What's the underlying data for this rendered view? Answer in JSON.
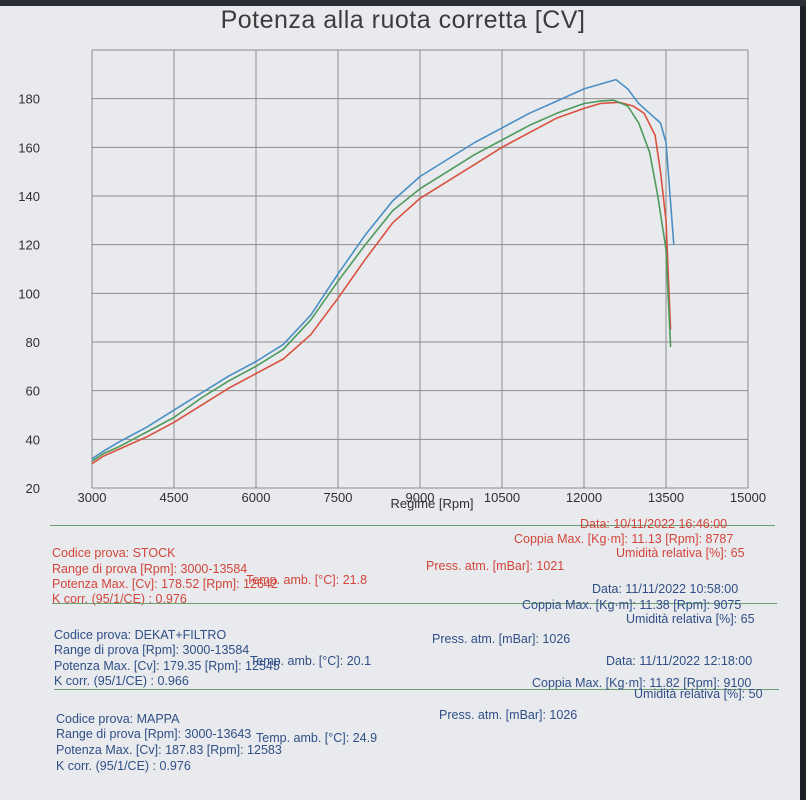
{
  "chart_data": {
    "type": "line",
    "title": "Potenza alla ruota corretta [CV]",
    "xlabel": "Regime [Rpm]",
    "ylabel": "",
    "xlim": [
      3000,
      15000
    ],
    "ylim": [
      20,
      200
    ],
    "xticks": [
      3000,
      4500,
      6000,
      7500,
      9000,
      10500,
      12000,
      13500,
      15000
    ],
    "yticks": [
      20,
      40,
      60,
      80,
      100,
      120,
      140,
      160,
      180
    ],
    "grid": true,
    "series": [
      {
        "name": "STOCK",
        "color": "#d9513f",
        "x": [
          3000,
          3200,
          3500,
          4000,
          4500,
          5000,
          5500,
          6000,
          6500,
          7000,
          7500,
          8000,
          8500,
          9000,
          9500,
          10000,
          10500,
          11000,
          11500,
          12000,
          12300,
          12642,
          12900,
          13100,
          13300,
          13400,
          13500,
          13584
        ],
        "y": [
          30,
          33,
          36,
          41,
          47,
          54,
          61,
          67,
          73,
          83,
          98,
          114,
          129,
          139,
          146,
          153,
          160,
          166,
          172,
          176,
          178,
          178.52,
          177,
          174,
          165,
          150,
          130,
          85
        ]
      },
      {
        "name": "DEKAT+FILTRO",
        "color": "#4d9a5b",
        "x": [
          3000,
          3200,
          3500,
          4000,
          4500,
          5000,
          5500,
          6000,
          6500,
          7000,
          7500,
          8000,
          8500,
          9000,
          9500,
          10000,
          10500,
          11000,
          11500,
          12000,
          12300,
          12545,
          12800,
          13000,
          13200,
          13350,
          13500,
          13584
        ],
        "y": [
          31,
          34,
          37,
          43,
          49,
          57,
          64,
          70,
          77,
          89,
          105,
          120,
          134,
          143,
          150,
          157,
          163,
          169,
          174,
          178,
          179,
          179.35,
          177,
          170,
          158,
          140,
          118,
          78
        ]
      },
      {
        "name": "MAPPA",
        "color": "#4a8fc4",
        "x": [
          3000,
          3200,
          3500,
          4000,
          4500,
          5000,
          5500,
          6000,
          6500,
          7000,
          7500,
          8000,
          8500,
          9000,
          9500,
          10000,
          10500,
          11000,
          11500,
          12000,
          12300,
          12583,
          12800,
          13000,
          13200,
          13400,
          13500,
          13643
        ],
        "y": [
          32,
          35,
          39,
          45,
          52,
          59,
          66,
          72,
          79,
          91,
          108,
          124,
          138,
          148,
          155,
          162,
          168,
          174,
          179,
          184,
          186,
          187.83,
          184,
          178,
          174,
          170,
          162,
          120
        ]
      }
    ]
  },
  "tests": [
    {
      "color": "#d2453a",
      "codice": "Codice prova: STOCK",
      "range": "Range di prova [Rpm]: 3000-13584",
      "potenza": "Potenza Max. [Cv]: 178.52  [Rpm]: 12642",
      "temp": "Temp. amb. [°C]: 21.8",
      "kcorr": "K corr. (95/1/CE) : 0.976",
      "press": "Press. atm. [mBar]: 1021",
      "data": "Data: 10/11/2022   16:46:00",
      "coppia": "Coppia Max. [Kg·m]: 11.13  [Rpm]: 8787",
      "umidita": "Umidità relativa [%]: 65"
    },
    {
      "color": "#2f4f86",
      "codice": "Codice prova: DEKAT+FILTRO",
      "range": "Range di prova [Rpm]: 3000-13584",
      "potenza": "Potenza Max. [Cv]: 179.35  [Rpm]: 12545",
      "temp": "Temp. amb. [°C]: 20.1",
      "kcorr": "K corr. (95/1/CE) : 0.966",
      "press": "Press. atm. [mBar]: 1026",
      "data": "Data: 11/11/2022   10:58:00",
      "coppia": "Coppia Max. [Kg·m]: 11.38  [Rpm]: 9075",
      "umidita": "Umidità relativa [%]: 65"
    },
    {
      "color": "#2f4f86",
      "codice": "Codice prova: MAPPA",
      "range": "Range di prova [Rpm]: 3000-13643",
      "potenza": "Potenza Max. [Cv]: 187.83  [Rpm]: 12583",
      "temp": "Temp. amb. [°C]: 24.9",
      "kcorr": "K corr. (95/1/CE) : 0.976",
      "press": "Press. atm. [mBar]: 1026",
      "data": "Data: 11/11/2022   12:18:00",
      "coppia": "Coppia Max. [Kg·m]: 11.82  [Rpm]: 9100",
      "umidita": "Umidità relativa [%]: 50"
    }
  ]
}
